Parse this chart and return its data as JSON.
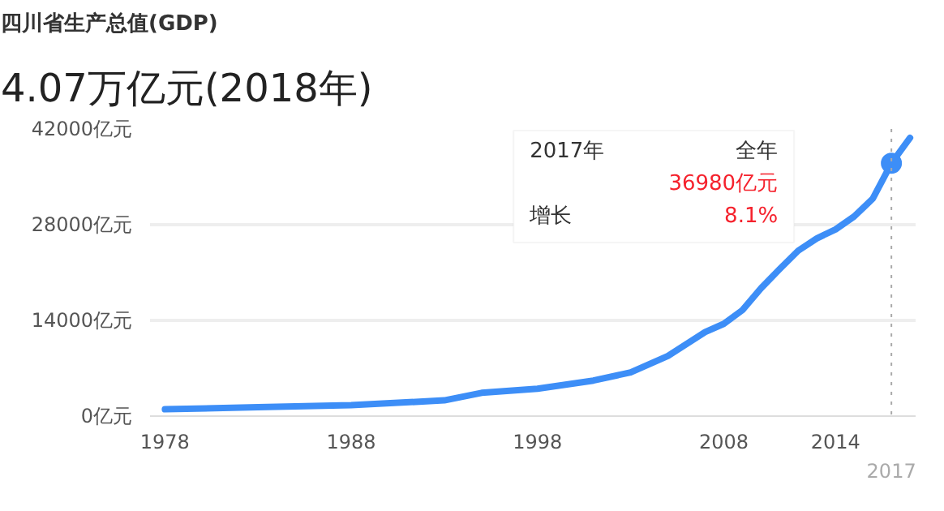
{
  "chart_data": {
    "type": "line",
    "title": "四川省生产总值(GDP)",
    "subtitle": "4.07万亿元(2018年)",
    "series": [
      {
        "color": "#3d8ef7",
        "x": [
          1978,
          1983,
          1988,
          1993,
          1995,
          1998,
          2001,
          2003,
          2005,
          2007,
          2008,
          2009,
          2010,
          2011,
          2012,
          2013,
          2014,
          2015,
          2016,
          2017,
          2018
        ],
        "values": [
          1000,
          1300,
          1600,
          2300,
          3400,
          4000,
          5200,
          6400,
          8800,
          12300,
          13500,
          15500,
          18700,
          21500,
          24200,
          26000,
          27300,
          29200,
          31800,
          36980,
          40700
        ]
      },
      {
        "type": "scatter",
        "marker": "circle",
        "color": "#3d8ef7",
        "x": [
          2017
        ],
        "values": [
          36980
        ]
      }
    ],
    "xlim": [
      1977.2,
      2018.3
    ],
    "xticks": [
      1978,
      1988,
      1998,
      2008,
      2014
    ],
    "ylim": [
      0,
      42000
    ],
    "yticks": [
      {
        "value": 0,
        "label": "0亿元"
      },
      {
        "value": 14000,
        "label": "14000亿元"
      },
      {
        "value": 28000,
        "label": "28000亿元"
      },
      {
        "value": 42000,
        "label": "42000亿元"
      }
    ],
    "grid": "y",
    "marker": "none",
    "line_style": "solid",
    "ref_lines": [
      {
        "axis": "x",
        "value": 2017,
        "label": "2017",
        "color": "#aaaaaa",
        "line_style": "dotted"
      }
    ],
    "annotations": [
      "2017年",
      "全年",
      "36980亿元",
      "增长",
      "8.1%"
    ]
  }
}
